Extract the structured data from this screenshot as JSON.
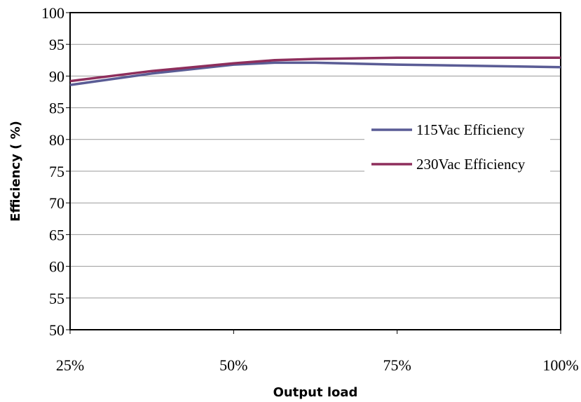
{
  "chart_data": {
    "type": "line",
    "title": "",
    "xlabel": "Output load",
    "ylabel": "Efficiency ( %)",
    "x": [
      25,
      37.5,
      50,
      56.25,
      62.5,
      75,
      87.5,
      100
    ],
    "x_tick_labels": [
      "25%",
      "50%",
      "75%",
      "100%"
    ],
    "x_ticks": [
      25,
      50,
      75,
      100
    ],
    "xlim": [
      25,
      100
    ],
    "ylim": [
      50,
      100
    ],
    "y_ticks": [
      50,
      55,
      60,
      65,
      70,
      75,
      80,
      85,
      90,
      95,
      100
    ],
    "y_tick_labels": [
      "50",
      "55",
      "60",
      "65",
      "70",
      "75",
      "80",
      "85",
      "90",
      "95",
      "100"
    ],
    "grid": "horizontal",
    "legend": "right",
    "series": [
      {
        "name": "115Vac Efficiency",
        "color": "#5A5C95",
        "values": [
          88.6,
          90.4,
          91.8,
          92.1,
          92.1,
          91.8,
          91.6,
          91.4
        ]
      },
      {
        "name": "230Vac Efficiency",
        "color": "#8E2E5C",
        "values": [
          89.2,
          90.8,
          92.0,
          92.5,
          92.7,
          92.9,
          92.9,
          92.9
        ]
      }
    ]
  }
}
